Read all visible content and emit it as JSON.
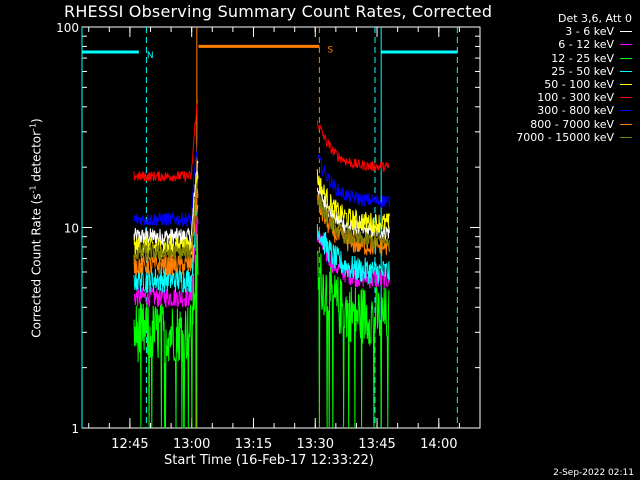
{
  "chart_data": {
    "type": "line",
    "title": "RHESSI Observing Summary Count Rates, Corrected",
    "xlabel": "Start Time (16-Feb-17 12:33:22)",
    "ylabel_text": "Corrected Count Rate (s",
    "ylabel_sup1": "-1",
    "ylabel_mid": " detector",
    "ylabel_sup2": "-1",
    "ylabel_end": ")",
    "y_scale": "log",
    "ylim": [
      1,
      100
    ],
    "y_ticks": [
      {
        "value": 1,
        "label": "1"
      },
      {
        "value": 10,
        "label": "10"
      },
      {
        "value": 100,
        "label": "100"
      }
    ],
    "xlim": [
      "12:33:22",
      "14:10:00"
    ],
    "x_ticks": [
      "12:45",
      "13:00",
      "13:15",
      "13:30",
      "13:45",
      "14:00"
    ],
    "legend_header": "Det 3,6, Att 0",
    "legend_position": "top-right, outside plot",
    "series": [
      {
        "name": "3 - 6 keV",
        "color": "#ffffff",
        "level1": 9.0,
        "level2": 9.5,
        "noise": 0.1
      },
      {
        "name": "6 - 12 keV",
        "color": "#ff00ff",
        "level1": 4.5,
        "level2": 5.5,
        "noise": 0.12
      },
      {
        "name": "12 - 25 keV",
        "color": "#00ff00",
        "level1": 3.0,
        "level2": 3.6,
        "noise": 0.35
      },
      {
        "name": "25 - 50 keV",
        "color": "#00ffff",
        "level1": 5.5,
        "level2": 6.0,
        "noise": 0.15
      },
      {
        "name": "50 - 100 keV",
        "color": "#ffff00",
        "level1": 8.0,
        "level2": 10.5,
        "noise": 0.12
      },
      {
        "name": "100 - 300 keV",
        "color": "#ff0000",
        "level1": 18.0,
        "level2": 20.0,
        "noise": 0.06
      },
      {
        "name": "300 - 800 keV",
        "color": "#0000ff",
        "level1": 11.0,
        "level2": 13.5,
        "noise": 0.08
      },
      {
        "name": "800 - 7000 keV",
        "color": "#ff8000",
        "level1": 6.5,
        "level2": 8.0,
        "noise": 0.12
      },
      {
        "name": "7000 - 15000 keV",
        "color": "#808000",
        "level1": 7.5,
        "level2": 8.5,
        "noise": 0.1
      }
    ],
    "segments": [
      {
        "start": "12:46:00",
        "end": "13:01:30",
        "spike_end": true
      },
      {
        "start": "13:30:30",
        "end": "13:48:00",
        "decay_start": true
      }
    ],
    "annotations": [
      {
        "label": "N",
        "color": "#00ffff",
        "start": "12:33:22",
        "end": "12:47:10",
        "level": 75,
        "dashed_at": [
          "12:49:00"
        ]
      },
      {
        "label": "S",
        "color": "#ff8000",
        "start": "13:01:40",
        "end": "13:31:00",
        "level": 80,
        "dashed_at": [
          "13:31:00"
        ]
      },
      {
        "label": "",
        "color": "#00ffff",
        "start": "13:46:00",
        "end": "14:04:30",
        "level": 75,
        "dashed_at": [
          "13:44:30",
          "14:04:30"
        ]
      }
    ],
    "vertical_markers": [
      {
        "time": "12:33:22",
        "color": "#00ffff",
        "style": "solid"
      },
      {
        "time": "13:01:15",
        "color": "#ff8000",
        "style": "solid"
      },
      {
        "time": "13:46:00",
        "color": "#00ffff",
        "style": "solid"
      }
    ],
    "grid": false
  },
  "footer": {
    "date": "2-Sep-2022 02:11"
  }
}
